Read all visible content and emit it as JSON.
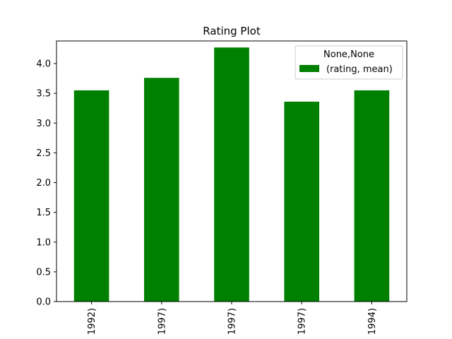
{
  "chart_data": {
    "type": "bar",
    "title": "Rating Plot",
    "xlabel": "",
    "ylabel": "",
    "categories": [
      "1992)",
      "1997)",
      "1997)",
      "1997)",
      "1994)"
    ],
    "series": [
      {
        "name": "(rating, mean)",
        "values": [
          3.55,
          3.76,
          4.27,
          3.36,
          3.55
        ]
      }
    ],
    "ylim": [
      0,
      4.38
    ],
    "yticks": [
      "0.0",
      "0.5",
      "1.0",
      "1.5",
      "2.0",
      "2.5",
      "3.0",
      "3.5",
      "4.0"
    ],
    "legend": {
      "title": "None,None",
      "placement": "top-right"
    },
    "grid": false,
    "bar_color": "#008000"
  }
}
